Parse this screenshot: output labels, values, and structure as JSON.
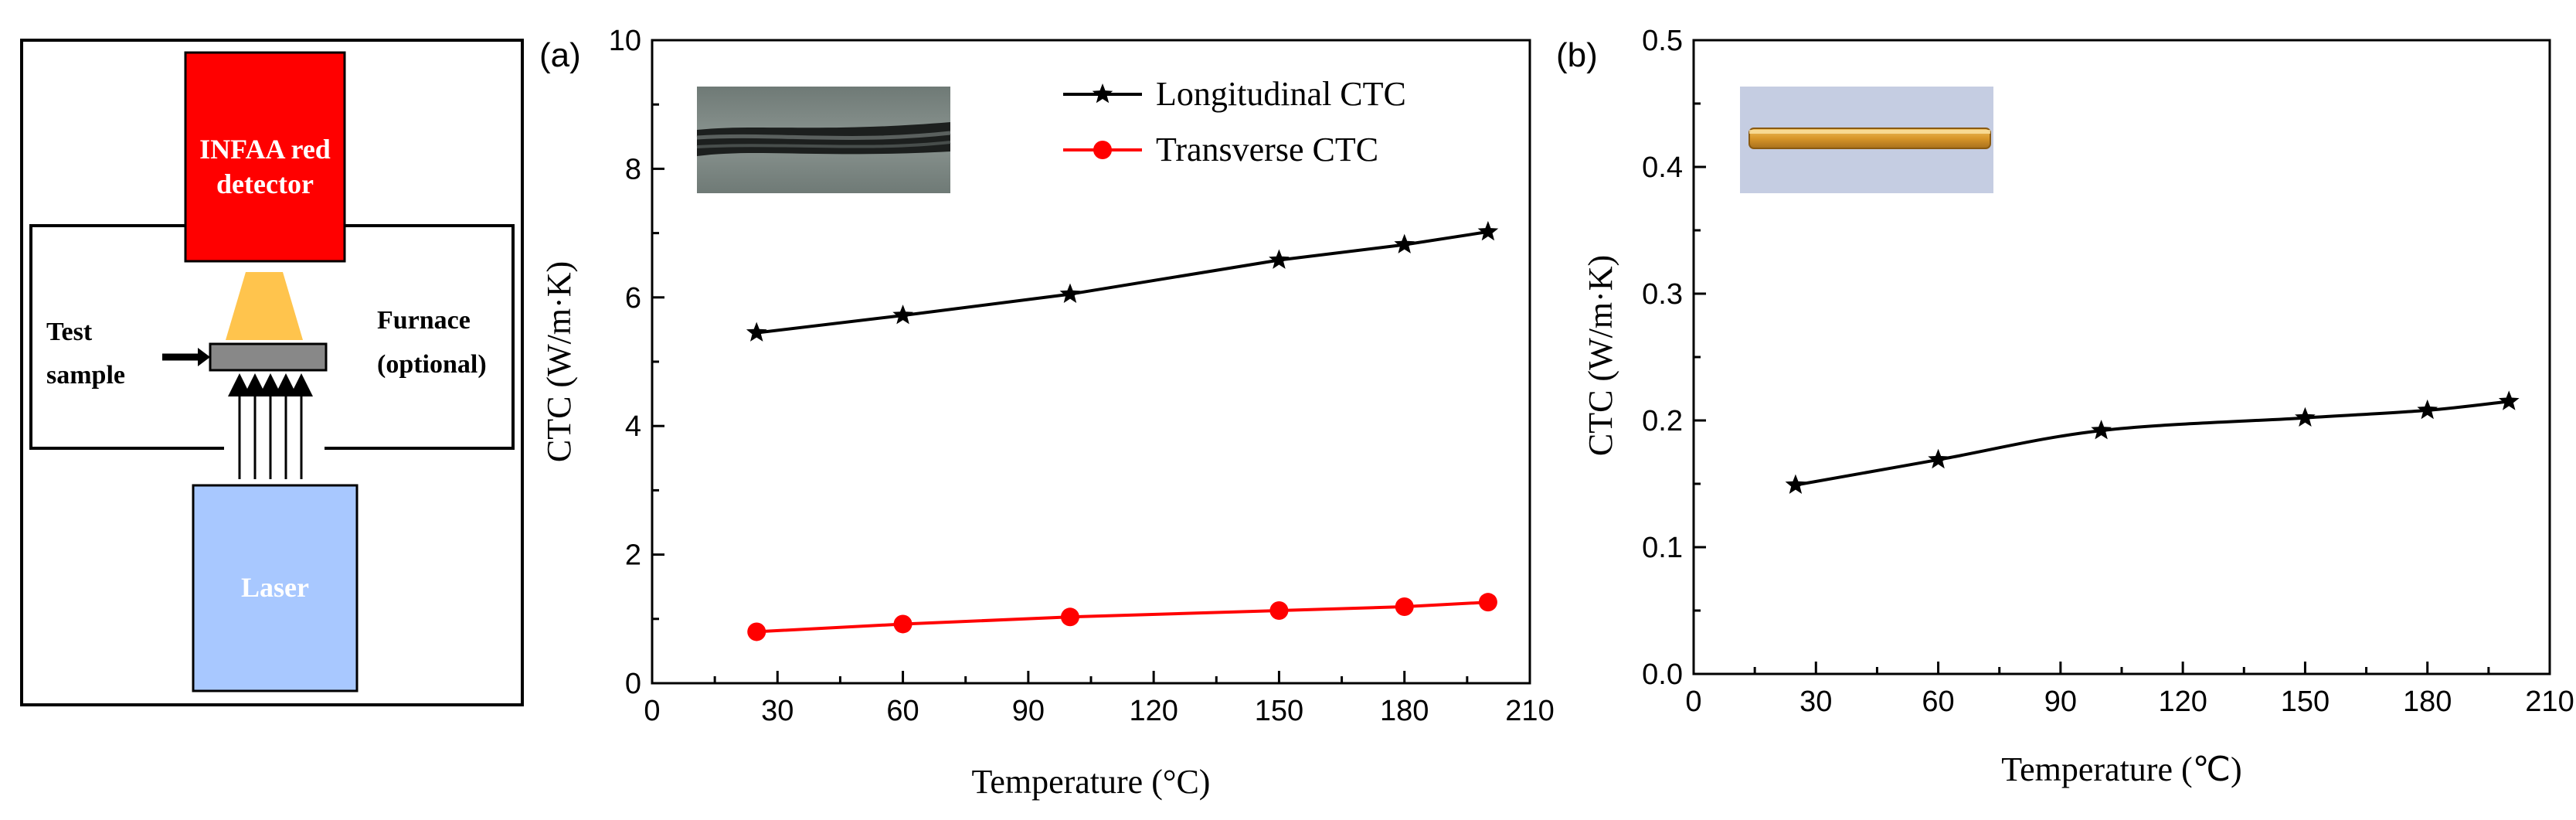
{
  "diagram": {
    "detector_line1": "INFAA red",
    "detector_line2": "detector",
    "sample_line1": "Test",
    "sample_line2": "sample",
    "furnace_line1": "Furnace",
    "furnace_line2": "(optional)",
    "laser_label": "Laser",
    "colors": {
      "detector": "#ff0000",
      "laser": "#a8c8ff",
      "beam": "#ffc44d",
      "sample": "#888888"
    }
  },
  "chart_data": [
    {
      "type": "line",
      "panel_label": "(a)",
      "xlabel": "Temperature (°C)",
      "ylabel": "CTC (W/m·K)",
      "xlim": [
        0,
        210
      ],
      "ylim": [
        0,
        10
      ],
      "x_ticks": [
        0,
        30,
        60,
        90,
        120,
        150,
        180,
        210
      ],
      "y_ticks": [
        0,
        2,
        4,
        6,
        8,
        10
      ],
      "legend_position": "top-right",
      "series": [
        {
          "name": "Longitudinal CTC",
          "color": "#000000",
          "marker": "star",
          "x": [
            25,
            60,
            100,
            150,
            180,
            200
          ],
          "values": [
            5.45,
            5.72,
            6.05,
            6.58,
            6.82,
            7.02
          ]
        },
        {
          "name": "Transverse CTC",
          "color": "#ff0000",
          "marker": "circle",
          "x": [
            25,
            60,
            100,
            150,
            180,
            200
          ],
          "values": [
            0.8,
            0.92,
            1.03,
            1.13,
            1.19,
            1.26
          ]
        }
      ],
      "inset": "fiber-photo"
    },
    {
      "type": "line",
      "panel_label": "(b)",
      "xlabel": "Temperature (℃)",
      "ylabel": "CTC (W/m·K)",
      "xlim": [
        0,
        210
      ],
      "ylim": [
        0,
        0.5
      ],
      "x_ticks": [
        0,
        30,
        60,
        90,
        120,
        150,
        180,
        210
      ],
      "y_ticks": [
        "0.0",
        "0.1",
        "0.2",
        "0.3",
        "0.4",
        "0.5"
      ],
      "series": [
        {
          "name": "",
          "color": "#000000",
          "marker": "star",
          "x": [
            25,
            60,
            100,
            150,
            180,
            200
          ],
          "values": [
            0.149,
            0.169,
            0.192,
            0.202,
            0.208,
            0.215
          ]
        }
      ],
      "inset": "rod-photo"
    }
  ]
}
